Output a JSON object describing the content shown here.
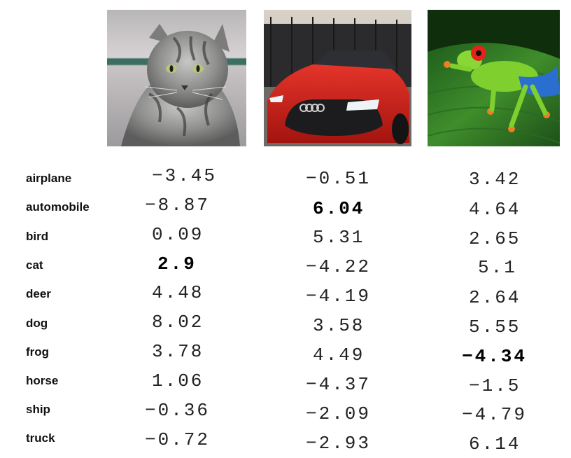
{
  "classes": [
    "airplane",
    "automobile",
    "bird",
    "cat",
    "deer",
    "dog",
    "frog",
    "horse",
    "ship",
    "truck"
  ],
  "images": [
    {
      "icon": "cat-photo",
      "scores": [
        "-3.45",
        "-8.87",
        "0.09",
        "2.9",
        "4.48",
        "8.02",
        "3.78",
        "1.06",
        "-0.36",
        "-0.72"
      ],
      "best_index": 3
    },
    {
      "icon": "car-photo",
      "scores": [
        "-0.51",
        "6.04",
        "5.31",
        "-4.22",
        "-4.19",
        "3.58",
        "4.49",
        "-4.37",
        "-2.09",
        "-2.93"
      ],
      "best_index": 1
    },
    {
      "icon": "frog-photo",
      "scores": [
        "3.42",
        "4.64",
        "2.65",
        "5.1",
        "2.64",
        "5.55",
        "-4.34",
        "-1.5",
        "-4.79",
        "6.14"
      ],
      "best_index": 6
    }
  ]
}
